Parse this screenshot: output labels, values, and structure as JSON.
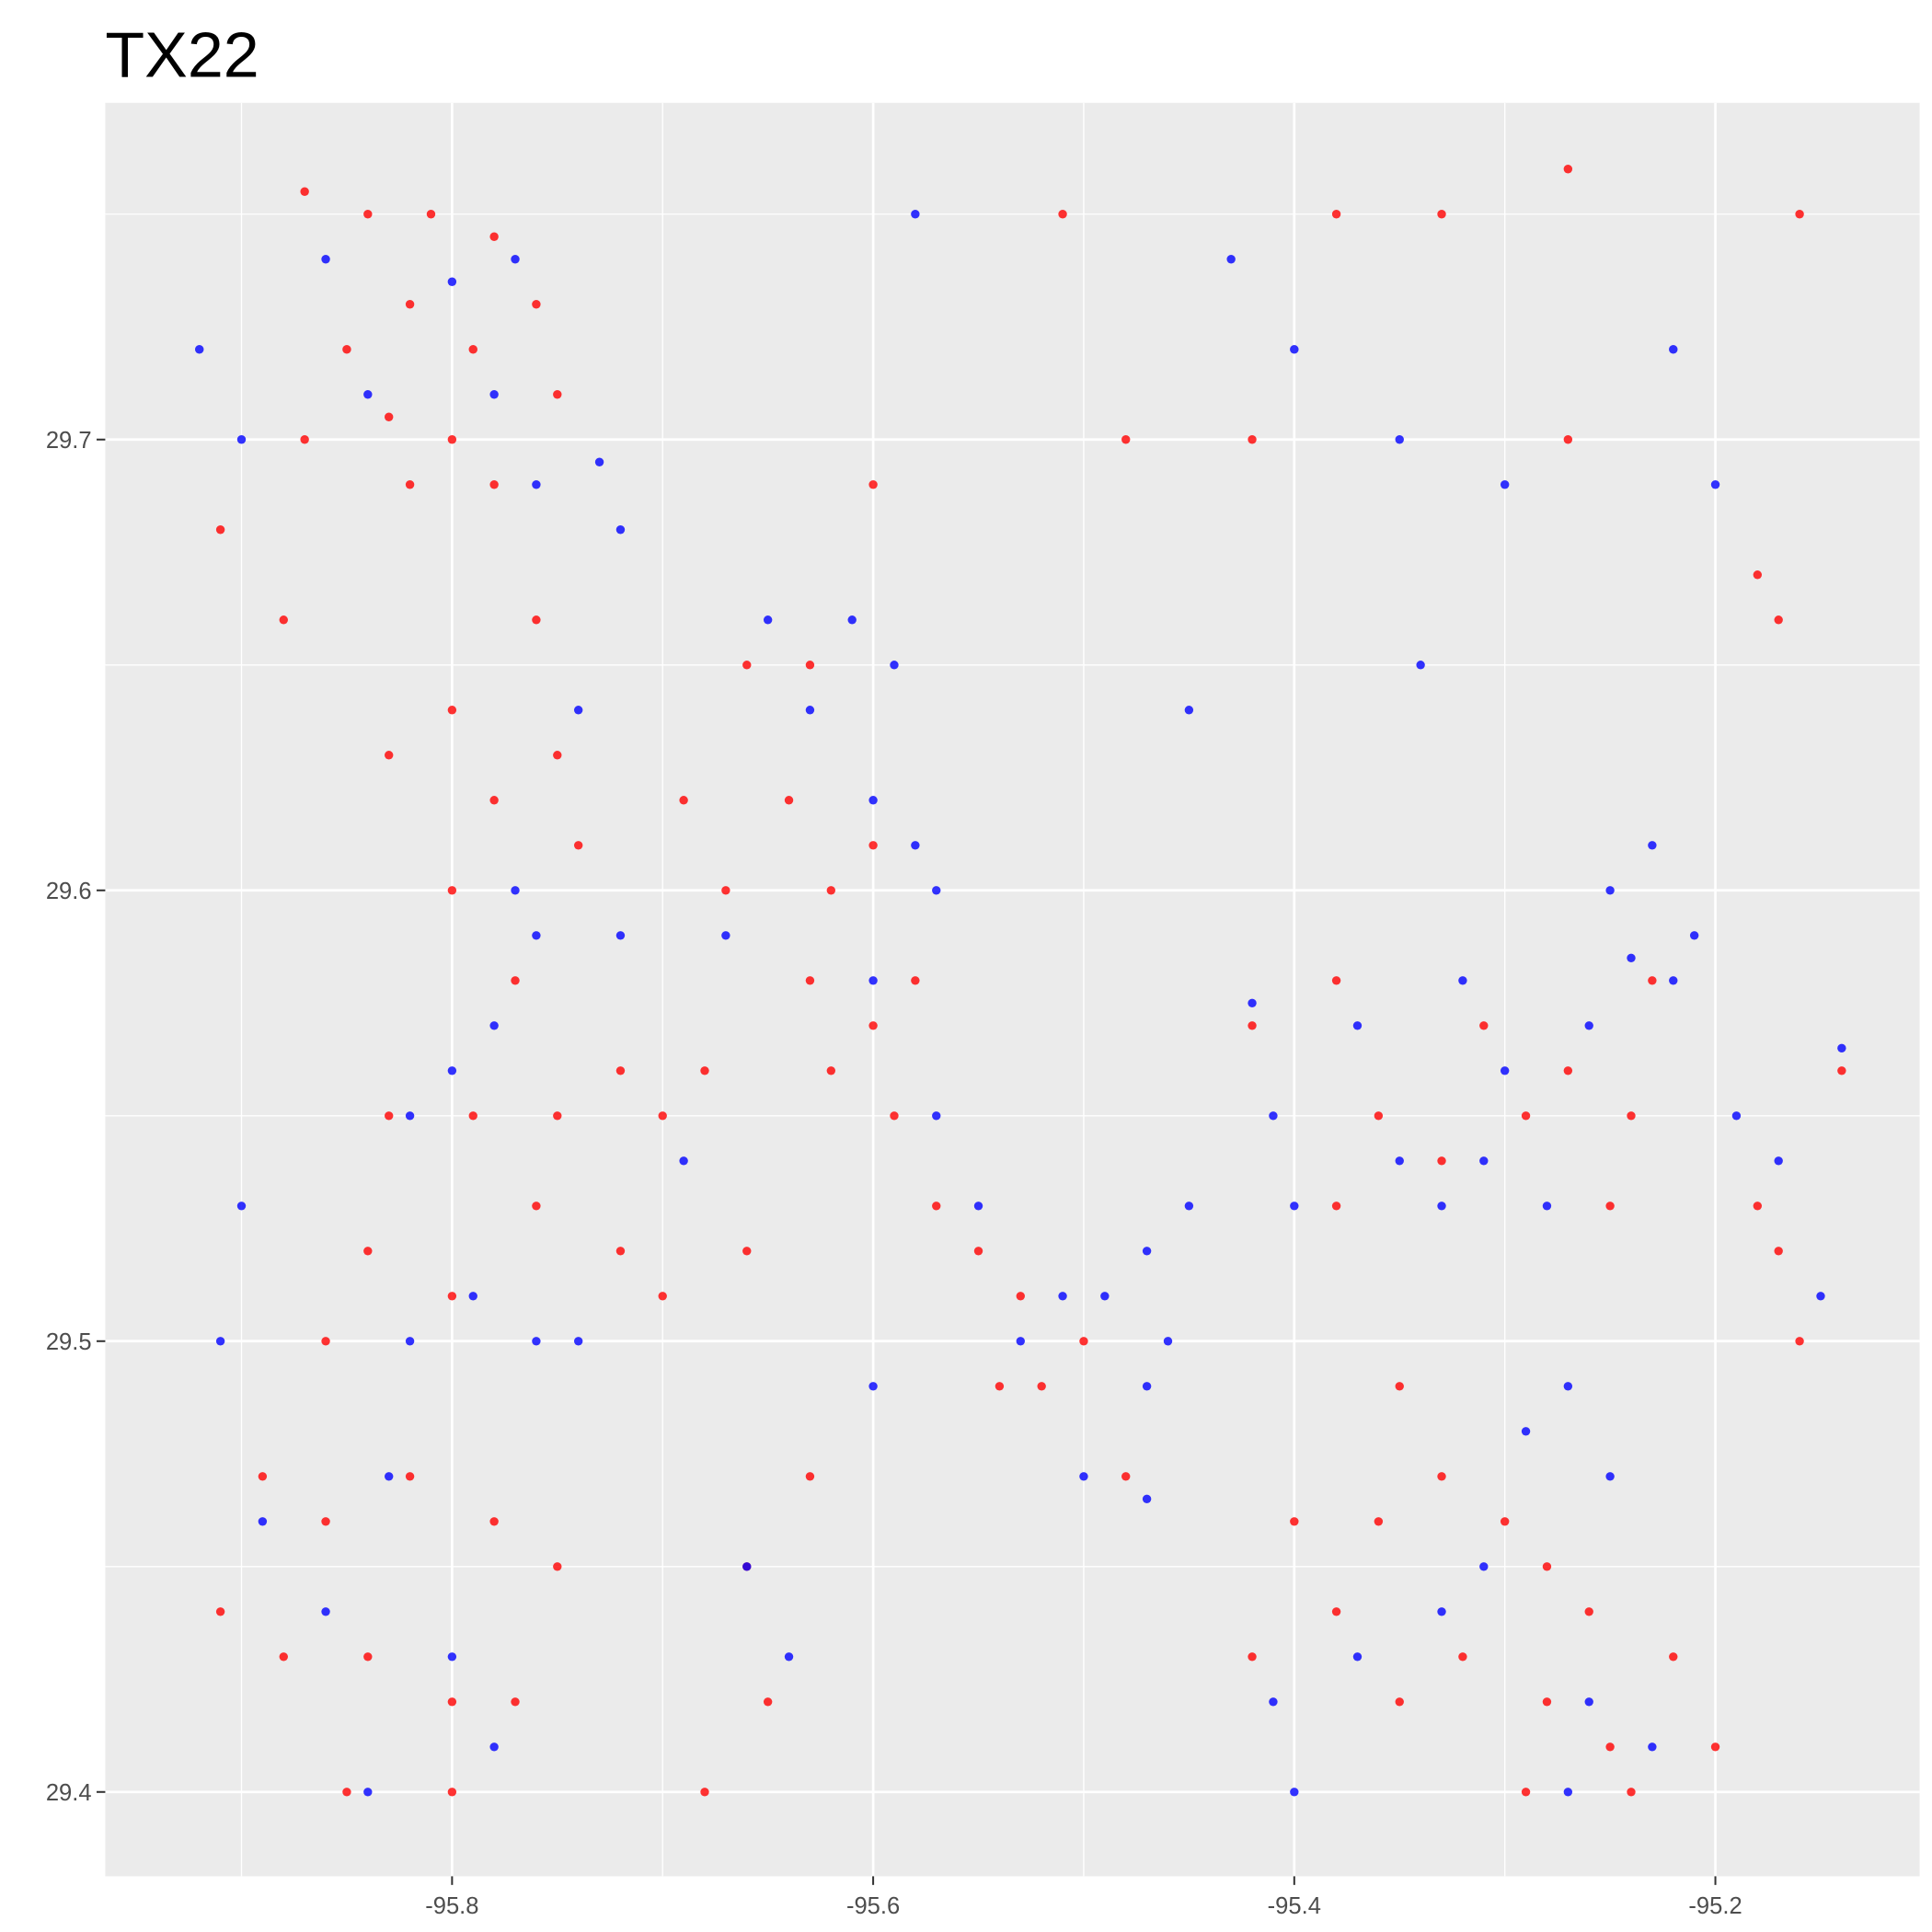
{
  "chart_data": {
    "type": "scatter",
    "title": "TX22",
    "xlim": [
      -95.9647,
      -95.103
    ],
    "ylim": [
      29.3813,
      29.7747
    ],
    "xticks": [
      -95.8,
      -95.6,
      -95.4,
      -95.2
    ],
    "yticks": [
      29.4,
      29.5,
      29.6,
      29.7
    ],
    "xminor": [
      -95.9,
      -95.7,
      -95.5,
      -95.3
    ],
    "yminor": [
      29.45,
      29.55,
      29.65,
      29.75
    ],
    "grid": true,
    "series": [
      {
        "color": "#ff0000",
        "x": [
          -95.87,
          -95.84,
          -95.81,
          -95.78,
          -95.76,
          -95.82,
          -95.85,
          -95.79,
          -95.75,
          -95.83,
          -95.8,
          -95.87,
          -95.91,
          -95.88,
          -95.82,
          -95.78,
          -95.76,
          -95.8,
          -95.75,
          -95.78,
          -95.83,
          -95.74,
          -95.8,
          -95.77,
          -95.83,
          -95.79,
          -95.75,
          -95.72,
          -95.7,
          -95.68,
          -95.67,
          -95.69,
          -95.66,
          -95.63,
          -95.64,
          -95.62,
          -95.6,
          -95.63,
          -95.62,
          -95.6,
          -95.58,
          -95.59,
          -95.57,
          -95.55,
          -95.53,
          -95.52,
          -95.54,
          -95.5,
          -95.48,
          -95.72,
          -95.7,
          -95.66,
          -95.76,
          -95.8,
          -95.84,
          -95.86,
          -95.89,
          -95.86,
          -95.82,
          -95.78,
          -95.75,
          -95.84,
          -95.8,
          -95.77,
          -95.88,
          -95.91,
          -95.85,
          -95.8,
          -95.66,
          -95.65,
          -95.68,
          -95.63,
          -95.42,
          -95.38,
          -95.36,
          -95.38,
          -95.33,
          -95.31,
          -95.29,
          -95.27,
          -95.24,
          -95.25,
          -95.23,
          -95.18,
          -95.17,
          -95.16,
          -95.14,
          -95.35,
          -95.33,
          -95.36,
          -95.3,
          -95.28,
          -95.26,
          -95.22,
          -95.25,
          -95.28,
          -95.32,
          -95.35,
          -95.38,
          -95.4,
          -95.42,
          -95.29,
          -95.24,
          -95.2,
          -95.38,
          -95.33,
          -95.27,
          -95.16,
          -95.48,
          -95.42,
          -95.27,
          -95.18,
          -95.17,
          -95.51,
          -95.6
        ],
        "y": [
          29.755,
          29.75,
          29.75,
          29.745,
          29.73,
          29.73,
          29.72,
          29.72,
          29.71,
          29.705,
          29.7,
          29.7,
          29.68,
          29.66,
          29.69,
          29.69,
          29.66,
          29.64,
          29.63,
          29.62,
          29.63,
          29.61,
          29.6,
          29.58,
          29.55,
          29.55,
          29.55,
          29.56,
          29.55,
          29.56,
          29.6,
          29.62,
          29.65,
          29.65,
          29.62,
          29.6,
          29.61,
          29.58,
          29.56,
          29.57,
          29.58,
          29.55,
          29.53,
          29.52,
          29.51,
          29.49,
          29.49,
          29.5,
          29.47,
          29.52,
          29.51,
          29.52,
          29.53,
          29.51,
          29.52,
          29.5,
          29.47,
          29.46,
          29.47,
          29.46,
          29.45,
          29.43,
          29.42,
          29.42,
          29.43,
          29.44,
          29.4,
          29.4,
          29.45,
          29.42,
          29.4,
          29.47,
          29.57,
          29.58,
          29.55,
          29.53,
          29.54,
          29.57,
          29.55,
          29.56,
          29.55,
          29.53,
          29.58,
          29.53,
          29.52,
          29.5,
          29.56,
          29.49,
          29.47,
          29.46,
          29.46,
          29.45,
          29.44,
          29.43,
          29.41,
          29.42,
          29.43,
          29.42,
          29.44,
          29.46,
          29.43,
          29.4,
          29.4,
          29.41,
          29.75,
          29.75,
          29.76,
          29.75,
          29.7,
          29.7,
          29.7,
          29.67,
          29.66,
          29.75,
          29.69
        ]
      },
      {
        "color": "#0000ff",
        "x": [
          -95.86,
          -95.8,
          -95.77,
          -95.84,
          -95.78,
          -95.73,
          -95.76,
          -95.72,
          -95.74,
          -95.77,
          -95.8,
          -95.82,
          -95.78,
          -95.76,
          -95.72,
          -95.74,
          -95.69,
          -95.67,
          -95.65,
          -95.61,
          -95.59,
          -95.63,
          -95.6,
          -95.58,
          -95.57,
          -95.6,
          -95.57,
          -95.55,
          -95.53,
          -95.51,
          -95.49,
          -95.47,
          -95.46,
          -95.45,
          -95.47,
          -95.41,
          -95.4,
          -95.42,
          -95.37,
          -95.35,
          -95.33,
          -95.31,
          -95.3,
          -95.32,
          -95.28,
          -95.26,
          -95.24,
          -95.22,
          -95.21,
          -95.25,
          -95.23,
          -95.19,
          -95.17,
          -95.15,
          -95.14,
          -95.27,
          -95.25,
          -95.29,
          -95.31,
          -95.26,
          -95.23,
          -95.27,
          -95.33,
          -95.37,
          -95.41,
          -95.4,
          -95.5,
          -95.47,
          -95.91,
          -95.9,
          -95.89,
          -95.86,
          -95.83,
          -95.82,
          -95.79,
          -95.76,
          -95.8,
          -95.78,
          -95.84,
          -95.9,
          -95.92,
          -95.66,
          -95.64,
          -95.58,
          -95.43,
          -95.4,
          -95.35,
          -95.22,
          -95.2,
          -95.3,
          -95.45,
          -95.34,
          -95.6
        ],
        "y": [
          29.74,
          29.735,
          29.74,
          29.71,
          29.71,
          29.695,
          29.69,
          29.68,
          29.64,
          29.6,
          29.56,
          29.55,
          29.57,
          29.59,
          29.59,
          29.5,
          29.54,
          29.59,
          29.66,
          29.66,
          29.65,
          29.64,
          29.62,
          29.61,
          29.6,
          29.58,
          29.55,
          29.53,
          29.5,
          29.51,
          29.51,
          29.52,
          29.5,
          29.53,
          29.49,
          29.55,
          29.53,
          29.575,
          29.57,
          29.54,
          29.53,
          29.54,
          29.56,
          29.58,
          29.53,
          29.57,
          29.585,
          29.58,
          29.59,
          29.6,
          29.61,
          29.55,
          29.54,
          29.51,
          29.565,
          29.49,
          29.47,
          29.48,
          29.45,
          29.42,
          29.41,
          29.4,
          29.44,
          29.43,
          29.42,
          29.4,
          29.47,
          29.465,
          29.5,
          29.53,
          29.46,
          29.44,
          29.47,
          29.5,
          29.51,
          29.5,
          29.43,
          29.41,
          29.4,
          29.7,
          29.72,
          29.45,
          29.43,
          29.75,
          29.74,
          29.72,
          29.7,
          29.72,
          29.69,
          29.69,
          29.64,
          29.65,
          29.49
        ]
      }
    ]
  }
}
